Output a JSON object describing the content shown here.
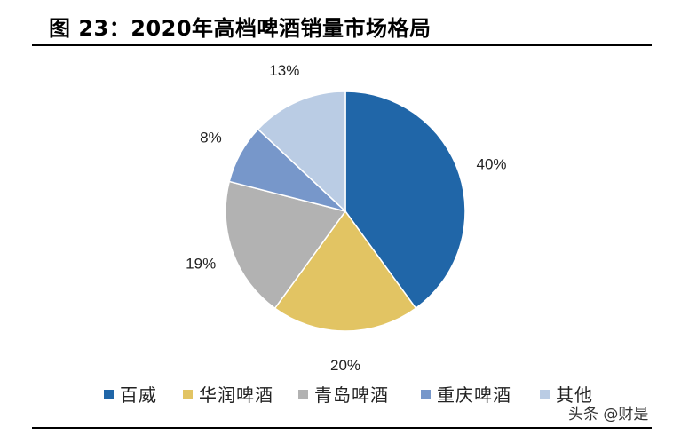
{
  "header": {
    "figure_title": "图 23：2020年高档啤酒销量市场格局"
  },
  "watermark": {
    "text": "头条 @财是"
  },
  "chart_data": {
    "type": "pie",
    "categories": [
      "百威",
      "华润啤酒",
      "青岛啤酒",
      "重庆啤酒",
      "其他"
    ],
    "values": [
      40,
      20,
      19,
      8,
      13
    ],
    "value_labels": [
      "40%",
      "20%",
      "19%",
      "8%",
      "13%"
    ],
    "colors": [
      "#2066A8",
      "#E2C463",
      "#B2B2B2",
      "#7797CA",
      "#BACCE4"
    ],
    "start_angle_deg": 0,
    "direction": "clockwise",
    "legend_position": "bottom"
  }
}
